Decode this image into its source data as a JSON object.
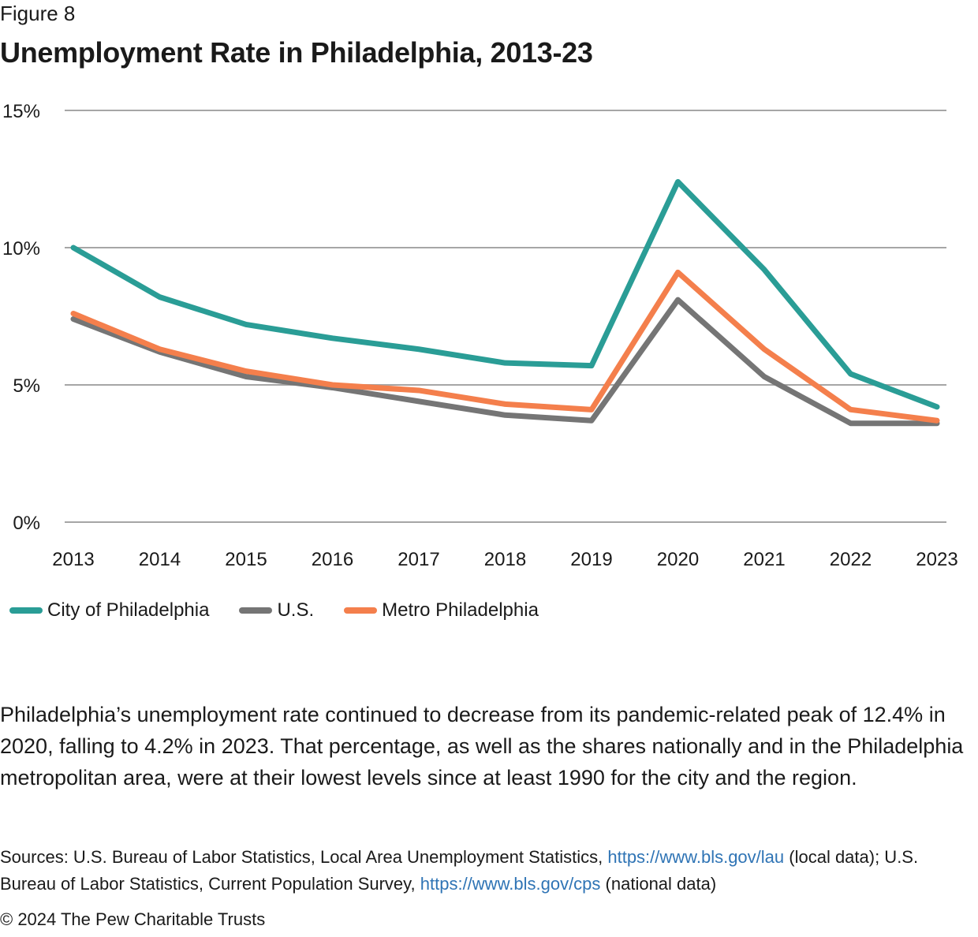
{
  "figure_label": "Figure 8",
  "title": "Unemployment Rate in Philadelphia, 2013-23",
  "chart_data": {
    "type": "line",
    "title": "Unemployment Rate in Philadelphia, 2013-23",
    "xlabel": "",
    "ylabel": "",
    "x": [
      "2013",
      "2014",
      "2015",
      "2016",
      "2017",
      "2018",
      "2019",
      "2020",
      "2021",
      "2022",
      "2023"
    ],
    "ylim": [
      0,
      15
    ],
    "yticks": [
      0,
      5,
      10,
      15
    ],
    "ytick_labels": [
      "0%",
      "5%",
      "10%",
      "15%"
    ],
    "grid": true,
    "legend_position": "bottom-left",
    "series": [
      {
        "name": "City of Philadelphia",
        "color": "#2a9d96",
        "values": [
          10.0,
          8.2,
          7.2,
          6.7,
          6.3,
          5.8,
          5.7,
          12.4,
          9.2,
          5.4,
          4.2
        ]
      },
      {
        "name": "U.S.",
        "color": "#757575",
        "values": [
          7.4,
          6.2,
          5.3,
          4.9,
          4.4,
          3.9,
          3.7,
          8.1,
          5.3,
          3.6,
          3.6
        ]
      },
      {
        "name": "Metro Philadelphia",
        "color": "#f47f4c",
        "values": [
          7.6,
          6.3,
          5.5,
          5.0,
          4.8,
          4.3,
          4.1,
          9.1,
          6.3,
          4.1,
          3.7
        ]
      }
    ]
  },
  "body_text": "Philadelphia’s unemployment rate continued to decrease from its pandemic-related peak of 12.4% in 2020, falling to 4.2% in 2023. That percentage, as well as the shares nationally and in the Philadelphia metropolitan area, were at their lowest levels since at least 1990 for the city and the region.",
  "sources": {
    "prefix": "Sources: U.S. Bureau of Labor Statistics, Local Area Unemployment Statistics, ",
    "link1": "https://www.bls.gov/lau",
    "mid": " (local data); U.S. Bureau of Labor Statistics, Current Population Survey, ",
    "link2": "https://www.bls.gov/cps",
    "suffix": " (national data)"
  },
  "copyright": "© 2024 The Pew Charitable Trusts"
}
